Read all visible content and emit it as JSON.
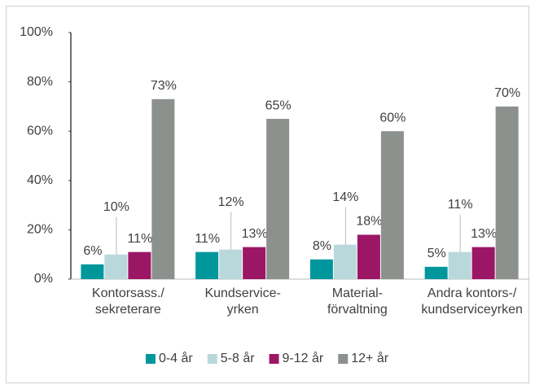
{
  "chart_data": {
    "type": "bar",
    "categories": [
      [
        "Kontorsass./",
        "sekreterare"
      ],
      [
        "Kundservice-",
        "yrken"
      ],
      [
        "Material-",
        "förvaltning"
      ],
      [
        "Andra kontors-/",
        "kundserviceyrken"
      ]
    ],
    "series": [
      {
        "name": "0-4 år",
        "color": "#00979c",
        "values": [
          6,
          11,
          8,
          5
        ],
        "value_labels": [
          "6%",
          "11%",
          "8%",
          "5%"
        ]
      },
      {
        "name": "5-8 år",
        "color": "#b9d8dc",
        "values": [
          10,
          12,
          14,
          11
        ],
        "value_labels": [
          "10%",
          "12%",
          "14%",
          "11%"
        ]
      },
      {
        "name": "9-12 år",
        "color": "#9c1666",
        "values": [
          11,
          13,
          18,
          13
        ],
        "value_labels": [
          "11%",
          "13%",
          "18%",
          "13%"
        ]
      },
      {
        "name": "12+ år",
        "color": "#8c918e",
        "values": [
          73,
          65,
          60,
          70
        ],
        "value_labels": [
          "73%",
          "65%",
          "60%",
          "70%"
        ]
      }
    ],
    "ylim": [
      0,
      100
    ],
    "yticks": [
      {
        "value": 0,
        "label": "0%"
      },
      {
        "value": 20,
        "label": "20%"
      },
      {
        "value": 40,
        "label": "40%"
      },
      {
        "value": 60,
        "label": "60%"
      },
      {
        "value": 80,
        "label": "80%"
      },
      {
        "value": 100,
        "label": "100%"
      }
    ],
    "legend": "bottom"
  }
}
